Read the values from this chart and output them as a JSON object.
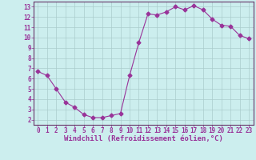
{
  "x": [
    0,
    1,
    2,
    3,
    4,
    5,
    6,
    7,
    8,
    9,
    10,
    11,
    12,
    13,
    14,
    15,
    16,
    17,
    18,
    19,
    20,
    21,
    22,
    23
  ],
  "y": [
    6.7,
    6.3,
    5.0,
    3.7,
    3.2,
    2.5,
    2.2,
    2.2,
    2.4,
    2.6,
    6.3,
    9.5,
    12.3,
    12.2,
    12.5,
    13.0,
    12.7,
    13.1,
    12.7,
    11.8,
    11.2,
    11.1,
    10.2,
    9.9
  ],
  "line_color": "#993399",
  "marker": "D",
  "markersize": 2.5,
  "linewidth": 0.8,
  "bg_color": "#cceeee",
  "grid_color": "#aacccc",
  "xlabel": "Windchill (Refroidissement éolien,°C)",
  "xlim": [
    -0.5,
    23.5
  ],
  "ylim": [
    1.5,
    13.5
  ],
  "yticks": [
    2,
    3,
    4,
    5,
    6,
    7,
    8,
    9,
    10,
    11,
    12,
    13
  ],
  "xticks": [
    0,
    1,
    2,
    3,
    4,
    5,
    6,
    7,
    8,
    9,
    10,
    11,
    12,
    13,
    14,
    15,
    16,
    17,
    18,
    19,
    20,
    21,
    22,
    23
  ],
  "tick_fontsize": 5.5,
  "xlabel_fontsize": 6.5,
  "axis_color": "#993399",
  "spine_color": "#663366"
}
